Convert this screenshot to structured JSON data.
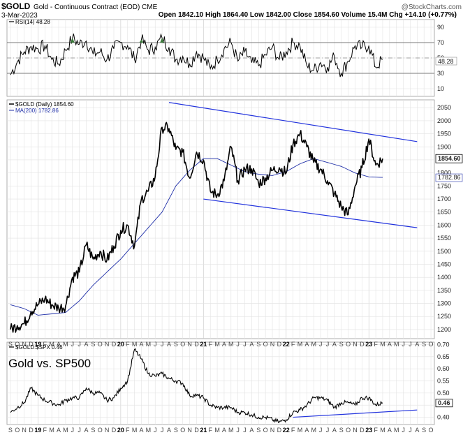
{
  "header": {
    "ticker": "$GOLD",
    "description": "Gold - Continuous Contract (EOD) CME",
    "date": "3-Mar-2023",
    "quote": "Open 1842.10  High 1864.40  Low 1842.00  Close 1854.60  Volume 15.4M  Chg +14.10 (+0.77%)",
    "quote_change_color": "#1a8c1a",
    "brand": "@StockCharts.com"
  },
  "colors": {
    "price": "#000000",
    "ma": "#1f2fa8",
    "trendline": "#2233dd",
    "grid": "#e2e2e2",
    "rsi_overbought_fill": "#3a7a3a",
    "rsi_oversold_fill": "#3a7a3a"
  },
  "chart_data": [
    {
      "type": "line",
      "panel": "RSI",
      "title": "RSI(14) 48.28",
      "y_ticks": [
        10,
        30,
        50,
        70,
        90
      ],
      "ylim": [
        0,
        100
      ],
      "reference_lines": [
        30,
        70
      ],
      "last_value_label": "48.28",
      "last_value": 48.28,
      "series": [
        {
          "name": "RSI(14)",
          "x": [
            "2018-09",
            "2018-10",
            "2018-11",
            "2018-12",
            "2019-01",
            "2019-02",
            "2019-03",
            "2019-04",
            "2019-05",
            "2019-06",
            "2019-07",
            "2019-08",
            "2019-09",
            "2019-10",
            "2019-11",
            "2019-12",
            "2020-01",
            "2020-02",
            "2020-03",
            "2020-04",
            "2020-05",
            "2020-06",
            "2020-07",
            "2020-08",
            "2020-09",
            "2020-10",
            "2020-11",
            "2020-12",
            "2021-01",
            "2021-02",
            "2021-03",
            "2021-04",
            "2021-05",
            "2021-06",
            "2021-07",
            "2021-08",
            "2021-09",
            "2021-10",
            "2021-11",
            "2021-12",
            "2022-01",
            "2022-02",
            "2022-03",
            "2022-04",
            "2022-05",
            "2022-06",
            "2022-07",
            "2022-08",
            "2022-09",
            "2022-10",
            "2022-11",
            "2022-12",
            "2023-01",
            "2023-02",
            "2023-03"
          ],
          "values": [
            28,
            45,
            58,
            65,
            62,
            66,
            48,
            42,
            60,
            76,
            68,
            72,
            55,
            58,
            48,
            62,
            70,
            66,
            48,
            74,
            60,
            64,
            76,
            64,
            48,
            52,
            42,
            58,
            50,
            36,
            48,
            62,
            70,
            46,
            58,
            44,
            40,
            54,
            64,
            48,
            58,
            70,
            66,
            40,
            34,
            44,
            38,
            52,
            30,
            46,
            66,
            64,
            66,
            38,
            48
          ]
        }
      ]
    },
    {
      "type": "line",
      "panel": "price",
      "legend": [
        "$GOLD (Daily) 1854.60",
        "MA(200) 1782.86"
      ],
      "y_ticks": [
        1200,
        1250,
        1300,
        1350,
        1400,
        1450,
        1500,
        1550,
        1600,
        1650,
        1700,
        1750,
        1800,
        1850,
        1900,
        1950,
        2000,
        2050
      ],
      "ylim": [
        1165,
        2080
      ],
      "last_price_label": "1854.60",
      "last_ma_label": "1782.86",
      "series": [
        {
          "name": "$GOLD (Daily)",
          "x": [
            "2018-09",
            "2018-10",
            "2018-11",
            "2018-12",
            "2019-01",
            "2019-02",
            "2019-03",
            "2019-04",
            "2019-05",
            "2019-06",
            "2019-07",
            "2019-08",
            "2019-09",
            "2019-10",
            "2019-11",
            "2019-12",
            "2020-01",
            "2020-02",
            "2020-03",
            "2020-04",
            "2020-05",
            "2020-06",
            "2020-07",
            "2020-08",
            "2020-09",
            "2020-10",
            "2020-11",
            "2020-12",
            "2021-01",
            "2021-02",
            "2021-03",
            "2021-04",
            "2021-05",
            "2021-06",
            "2021-07",
            "2021-08",
            "2021-09",
            "2021-10",
            "2021-11",
            "2021-12",
            "2022-01",
            "2022-02",
            "2022-03",
            "2022-04",
            "2022-05",
            "2022-06",
            "2022-07",
            "2022-08",
            "2022-09",
            "2022-10",
            "2022-11",
            "2022-12",
            "2023-01",
            "2023-02",
            "2023-03"
          ],
          "values": [
            1200,
            1215,
            1222,
            1270,
            1295,
            1318,
            1295,
            1282,
            1290,
            1400,
            1420,
            1525,
            1470,
            1500,
            1465,
            1520,
            1580,
            1600,
            1520,
            1700,
            1730,
            1785,
            1975,
            1970,
            1890,
            1880,
            1780,
            1880,
            1850,
            1730,
            1715,
            1770,
            1900,
            1770,
            1815,
            1815,
            1760,
            1780,
            1810,
            1820,
            1800,
            1910,
            1950,
            1900,
            1840,
            1815,
            1770,
            1720,
            1670,
            1640,
            1750,
            1820,
            1930,
            1830,
            1854.6
          ]
        },
        {
          "name": "MA(200)",
          "x": [
            "2018-09",
            "2018-11",
            "2019-01",
            "2019-03",
            "2019-05",
            "2019-07",
            "2019-09",
            "2019-11",
            "2020-01",
            "2020-03",
            "2020-05",
            "2020-07",
            "2020-09",
            "2020-11",
            "2021-01",
            "2021-03",
            "2021-05",
            "2021-07",
            "2021-09",
            "2021-11",
            "2022-01",
            "2022-03",
            "2022-05",
            "2022-07",
            "2022-09",
            "2022-11",
            "2023-01",
            "2023-03"
          ],
          "values": [
            1295,
            1280,
            1255,
            1260,
            1265,
            1310,
            1370,
            1420,
            1470,
            1530,
            1590,
            1650,
            1750,
            1810,
            1855,
            1855,
            1830,
            1805,
            1795,
            1790,
            1805,
            1835,
            1855,
            1840,
            1825,
            1800,
            1785,
            1782.86
          ]
        },
        {
          "name": "Upper trend channel",
          "x": [
            "2020-08",
            "2023-08"
          ],
          "values": [
            2070,
            1920
          ]
        },
        {
          "name": "Lower trend channel",
          "x": [
            "2021-01",
            "2023-08"
          ],
          "values": [
            1700,
            1590
          ]
        }
      ]
    },
    {
      "type": "line",
      "panel": "ratio",
      "title": "$GOLD:$SPX 0.46",
      "annotation": "Gold vs. SP500",
      "y_ticks": [
        0.4,
        0.45,
        0.5,
        0.55,
        0.6,
        0.65,
        0.7
      ],
      "ylim": [
        0.37,
        0.71
      ],
      "last_value_label": "0.46",
      "series": [
        {
          "name": "$GOLD:$SPX",
          "x": [
            "2018-09",
            "2018-10",
            "2018-11",
            "2018-12",
            "2019-01",
            "2019-02",
            "2019-03",
            "2019-04",
            "2019-05",
            "2019-06",
            "2019-07",
            "2019-08",
            "2019-09",
            "2019-10",
            "2019-11",
            "2019-12",
            "2020-01",
            "2020-02",
            "2020-03",
            "2020-04",
            "2020-05",
            "2020-06",
            "2020-07",
            "2020-08",
            "2020-09",
            "2020-10",
            "2020-11",
            "2020-12",
            "2021-01",
            "2021-02",
            "2021-03",
            "2021-04",
            "2021-05",
            "2021-06",
            "2021-07",
            "2021-08",
            "2021-09",
            "2021-10",
            "2021-11",
            "2021-12",
            "2022-01",
            "2022-02",
            "2022-03",
            "2022-04",
            "2022-05",
            "2022-06",
            "2022-07",
            "2022-08",
            "2022-09",
            "2022-10",
            "2022-11",
            "2022-12",
            "2023-01",
            "2023-02",
            "2023-03"
          ],
          "values": [
            0.42,
            0.44,
            0.46,
            0.52,
            0.49,
            0.47,
            0.46,
            0.45,
            0.47,
            0.48,
            0.48,
            0.52,
            0.5,
            0.5,
            0.47,
            0.48,
            0.52,
            0.55,
            0.68,
            0.64,
            0.58,
            0.57,
            0.58,
            0.56,
            0.55,
            0.54,
            0.49,
            0.49,
            0.48,
            0.45,
            0.44,
            0.44,
            0.44,
            0.42,
            0.42,
            0.41,
            0.4,
            0.4,
            0.39,
            0.38,
            0.39,
            0.42,
            0.43,
            0.45,
            0.48,
            0.48,
            0.47,
            0.44,
            0.46,
            0.46,
            0.45,
            0.48,
            0.48,
            0.45,
            0.46
          ]
        },
        {
          "name": "Support line",
          "x": [
            "2022-02",
            "2023-08"
          ],
          "values": [
            0.4,
            0.43
          ]
        }
      ]
    }
  ],
  "x_axis": {
    "month_ticks": [
      {
        "x": "2018-09",
        "label": "S"
      },
      {
        "x": "2018-10",
        "label": "O"
      },
      {
        "x": "2018-11",
        "label": "N"
      },
      {
        "x": "2018-12",
        "label": "D"
      },
      {
        "x": "2019-01",
        "label": "19",
        "year": true
      },
      {
        "x": "2019-02",
        "label": "F"
      },
      {
        "x": "2019-03",
        "label": "M"
      },
      {
        "x": "2019-04",
        "label": "A"
      },
      {
        "x": "2019-05",
        "label": "M"
      },
      {
        "x": "2019-06",
        "label": "J"
      },
      {
        "x": "2019-07",
        "label": "J"
      },
      {
        "x": "2019-08",
        "label": "A"
      },
      {
        "x": "2019-09",
        "label": "S"
      },
      {
        "x": "2019-10",
        "label": "O"
      },
      {
        "x": "2019-11",
        "label": "N"
      },
      {
        "x": "2019-12",
        "label": "D"
      },
      {
        "x": "2020-01",
        "label": "20",
        "year": true
      },
      {
        "x": "2020-02",
        "label": "F"
      },
      {
        "x": "2020-03",
        "label": "M"
      },
      {
        "x": "2020-04",
        "label": "A"
      },
      {
        "x": "2020-05",
        "label": "M"
      },
      {
        "x": "2020-06",
        "label": "J"
      },
      {
        "x": "2020-07",
        "label": "J"
      },
      {
        "x": "2020-08",
        "label": "A"
      },
      {
        "x": "2020-09",
        "label": "S"
      },
      {
        "x": "2020-10",
        "label": "O"
      },
      {
        "x": "2020-11",
        "label": "N"
      },
      {
        "x": "2020-12",
        "label": "D"
      },
      {
        "x": "2021-01",
        "label": "21",
        "year": true
      },
      {
        "x": "2021-02",
        "label": "F"
      },
      {
        "x": "2021-03",
        "label": "M"
      },
      {
        "x": "2021-04",
        "label": "A"
      },
      {
        "x": "2021-05",
        "label": "M"
      },
      {
        "x": "2021-06",
        "label": "J"
      },
      {
        "x": "2021-07",
        "label": "J"
      },
      {
        "x": "2021-08",
        "label": "A"
      },
      {
        "x": "2021-09",
        "label": "S"
      },
      {
        "x": "2021-10",
        "label": "O"
      },
      {
        "x": "2021-11",
        "label": "N"
      },
      {
        "x": "2021-12",
        "label": "D"
      },
      {
        "x": "2022-01",
        "label": "22",
        "year": true
      },
      {
        "x": "2022-02",
        "label": "F"
      },
      {
        "x": "2022-03",
        "label": "M"
      },
      {
        "x": "2022-04",
        "label": "A"
      },
      {
        "x": "2022-05",
        "label": "M"
      },
      {
        "x": "2022-06",
        "label": "J"
      },
      {
        "x": "2022-07",
        "label": "J"
      },
      {
        "x": "2022-08",
        "label": "A"
      },
      {
        "x": "2022-09",
        "label": "S"
      },
      {
        "x": "2022-10",
        "label": "O"
      },
      {
        "x": "2022-11",
        "label": "N"
      },
      {
        "x": "2022-12",
        "label": "D"
      },
      {
        "x": "2023-01",
        "label": "23",
        "year": true
      },
      {
        "x": "2023-02",
        "label": "F"
      },
      {
        "x": "2023-03",
        "label": "M"
      },
      {
        "x": "2023-04",
        "label": "A"
      },
      {
        "x": "2023-05",
        "label": "M"
      },
      {
        "x": "2023-06",
        "label": "J"
      },
      {
        "x": "2023-07",
        "label": "J"
      },
      {
        "x": "2023-08",
        "label": "A"
      },
      {
        "x": "2023-09",
        "label": "S"
      },
      {
        "x": "2023-10",
        "label": "O"
      }
    ]
  }
}
